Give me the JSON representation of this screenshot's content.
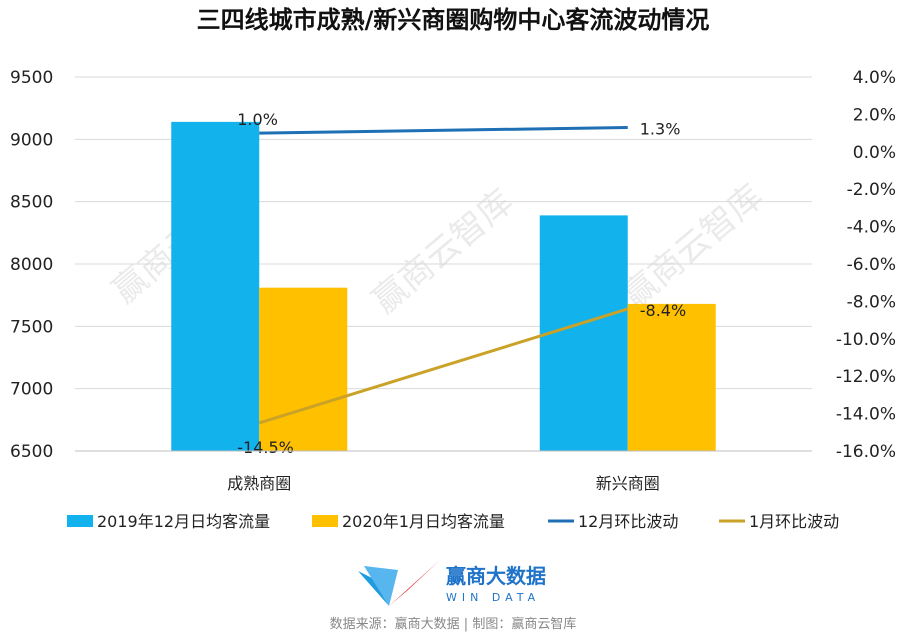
{
  "chart_data": {
    "type": "bar",
    "title": "三四线城市成熟/新兴商圈购物中心客流波动情况",
    "categories": [
      "成熟商圈",
      "新兴商圈"
    ],
    "series": [
      {
        "name": "2019年12月日均客流量",
        "type": "bar",
        "axis": "left",
        "color": "#12b2ec",
        "values": [
          9140,
          8390
        ]
      },
      {
        "name": "2020年1月日均客流量",
        "type": "bar",
        "axis": "left",
        "color": "#ffc000",
        "values": [
          7810,
          7680
        ]
      },
      {
        "name": "12月环比波动",
        "type": "line",
        "axis": "right",
        "color": "#1f6fb5",
        "values": [
          1.0,
          1.3
        ],
        "labels": [
          "1.0%",
          "1.3%"
        ]
      },
      {
        "name": "1月环比波动",
        "type": "line",
        "axis": "right",
        "color": "#c9a227",
        "values": [
          -14.5,
          -8.4
        ],
        "labels": [
          "-14.5%",
          "-8.4%"
        ]
      }
    ],
    "left_axis": {
      "min": 6500,
      "max": 9500,
      "ticks": [
        "6500",
        "7000",
        "7500",
        "8000",
        "8500",
        "9000",
        "9500"
      ]
    },
    "right_axis": {
      "min": -16,
      "max": 4,
      "ticks": [
        "-16.0%",
        "-14.0%",
        "-12.0%",
        "-10.0%",
        "-8.0%",
        "-6.0%",
        "-4.0%",
        "-2.0%",
        "0.0%",
        "2.0%",
        "4.0%"
      ]
    },
    "grid": true,
    "legend_position": "bottom"
  },
  "watermark": "赢商云智库",
  "brand": {
    "name": "赢商大数据",
    "sub": "WIN DATA",
    "logo_colors": [
      "#1f9be0",
      "#e8393f"
    ]
  },
  "source": "数据来源：赢商大数据 | 制图：赢商云智库"
}
